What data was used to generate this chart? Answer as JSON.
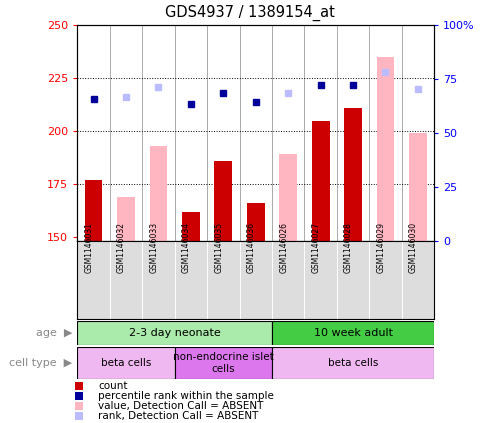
{
  "title": "GDS4937 / 1389154_at",
  "samples": [
    "GSM1146031",
    "GSM1146032",
    "GSM1146033",
    "GSM1146034",
    "GSM1146035",
    "GSM1146036",
    "GSM1146026",
    "GSM1146027",
    "GSM1146028",
    "GSM1146029",
    "GSM1146030"
  ],
  "count_values": [
    177,
    null,
    null,
    162,
    186,
    166,
    null,
    205,
    211,
    null,
    null
  ],
  "count_absent_values": [
    null,
    169,
    193,
    null,
    null,
    null,
    189,
    null,
    null,
    235,
    199
  ],
  "rank_values": [
    215,
    null,
    null,
    213,
    218,
    214,
    null,
    222,
    222,
    null,
    null
  ],
  "rank_absent_values": [
    null,
    216,
    221,
    null,
    null,
    null,
    218,
    null,
    null,
    228,
    220
  ],
  "ylim_left": [
    148,
    250
  ],
  "ylim_right": [
    0,
    100
  ],
  "yticks_left": [
    150,
    175,
    200,
    225,
    250
  ],
  "yticks_right": [
    0,
    25,
    50,
    75,
    100
  ],
  "bar_width": 0.55,
  "age_groups": [
    {
      "label": "2-3 day neonate",
      "start": 0,
      "end": 6,
      "color": "#AAEAAA"
    },
    {
      "label": "10 week adult",
      "start": 6,
      "end": 11,
      "color": "#44CC44"
    }
  ],
  "cell_type_groups": [
    {
      "label": "beta cells",
      "start": 0,
      "end": 3,
      "color": "#F0B8F0"
    },
    {
      "label": "non-endocrine islet\ncells",
      "start": 3,
      "end": 6,
      "color": "#DD77EE"
    },
    {
      "label": "beta cells",
      "start": 6,
      "end": 11,
      "color": "#F0B8F0"
    }
  ],
  "legend_items": [
    {
      "label": "count",
      "color": "#CC0000"
    },
    {
      "label": "percentile rank within the sample",
      "color": "#000099"
    },
    {
      "label": "value, Detection Call = ABSENT",
      "color": "#FFB6C1"
    },
    {
      "label": "rank, Detection Call = ABSENT",
      "color": "#BBBBFF"
    }
  ],
  "count_color": "#CC0000",
  "absent_count_color": "#FFB6C1",
  "rank_color": "#000099",
  "absent_rank_color": "#BBBBFF",
  "background_color": "#FFFFFF",
  "plot_bg_color": "#FFFFFF",
  "sample_bg_color": "#DDDDDD",
  "gridline_color": "#000000",
  "separator_color": "#AAAAAA"
}
